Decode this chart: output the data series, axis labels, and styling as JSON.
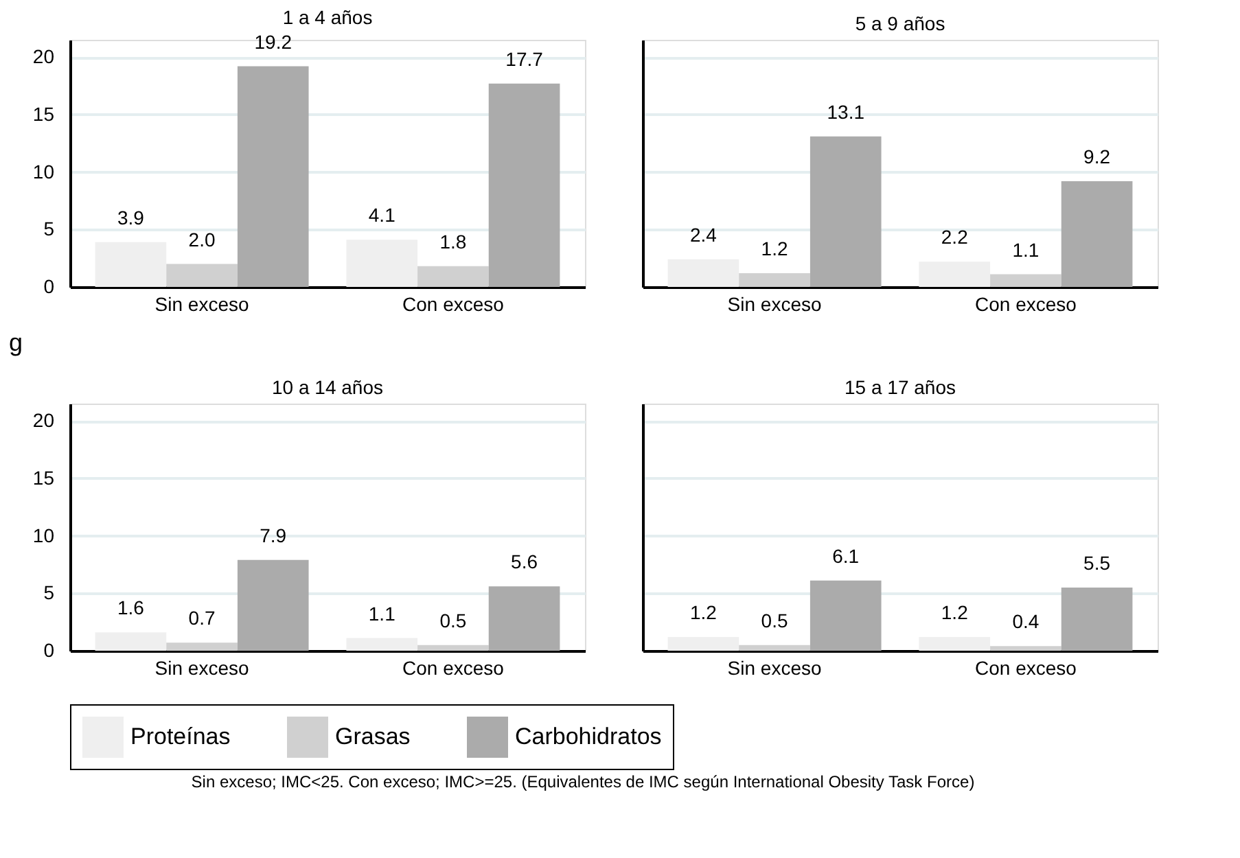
{
  "chart_data": [
    {
      "type": "bar",
      "title": "1 a 4 años",
      "ylabel": "g",
      "categories": [
        "Sin exceso",
        "Con exceso"
      ],
      "ylim": [
        0,
        21.5
      ],
      "yticks": [
        0,
        5,
        10,
        15,
        20
      ],
      "grid": "y",
      "data_labels": true,
      "legend": "bottom",
      "series": [
        {
          "name": "Proteínas",
          "color": "#efefef",
          "values": [
            3.9,
            4.1
          ]
        },
        {
          "name": "Grasas",
          "color": "#d0d0d0",
          "values": [
            2.0,
            1.8
          ],
          "value_labels": [
            "2.0",
            "1.8"
          ]
        },
        {
          "name": "Carbohidratos",
          "color": "#ababab",
          "values": [
            19.2,
            17.7
          ]
        }
      ]
    },
    {
      "type": "bar",
      "title": "5 a 9 años",
      "categories": [
        "Sin exceso",
        "Con exceso"
      ],
      "ylim": [
        0,
        21.5
      ],
      "yticks": [
        0,
        5,
        10,
        15,
        20
      ],
      "grid": "y",
      "data_labels": true,
      "tick_labels": "x",
      "legend": "bottom",
      "series": [
        {
          "name": "Proteínas",
          "color": "#efefef",
          "values": [
            2.4,
            2.2
          ]
        },
        {
          "name": "Grasas",
          "color": "#d0d0d0",
          "values": [
            1.2,
            1.1
          ]
        },
        {
          "name": "Carbohidratos",
          "color": "#ababab",
          "values": [
            13.1,
            9.2
          ]
        }
      ]
    },
    {
      "type": "bar",
      "title": "10 a 14 años",
      "categories": [
        "Sin exceso",
        "Con exceso"
      ],
      "ylim": [
        0,
        21.5
      ],
      "yticks": [
        0,
        5,
        10,
        15,
        20
      ],
      "grid": "y",
      "data_labels": true,
      "legend": "bottom",
      "series": [
        {
          "name": "Proteínas",
          "color": "#efefef",
          "values": [
            1.6,
            1.1
          ]
        },
        {
          "name": "Grasas",
          "color": "#d0d0d0",
          "values": [
            0.7,
            0.5
          ]
        },
        {
          "name": "Carbohidratos",
          "color": "#ababab",
          "values": [
            7.9,
            5.6
          ]
        }
      ]
    },
    {
      "type": "bar",
      "title": "15 a 17 años",
      "categories": [
        "Sin exceso",
        "Con exceso"
      ],
      "ylim": [
        0,
        21.5
      ],
      "yticks": [
        0,
        5,
        10,
        15,
        20
      ],
      "grid": "y",
      "data_labels": true,
      "tick_labels": "x",
      "legend": "bottom",
      "annotations": [
        "Sin exceso; IMC<25. Con exceso; IMC>=25. (Equivalentes de IMC según International Obesity Task Force)"
      ],
      "series": [
        {
          "name": "Proteínas",
          "color": "#efefef",
          "values": [
            1.2,
            1.2
          ]
        },
        {
          "name": "Grasas",
          "color": "#d0d0d0",
          "values": [
            0.5,
            0.4
          ]
        },
        {
          "name": "Carbohidratos",
          "color": "#ababab",
          "values": [
            6.1,
            5.5
          ]
        }
      ]
    }
  ]
}
